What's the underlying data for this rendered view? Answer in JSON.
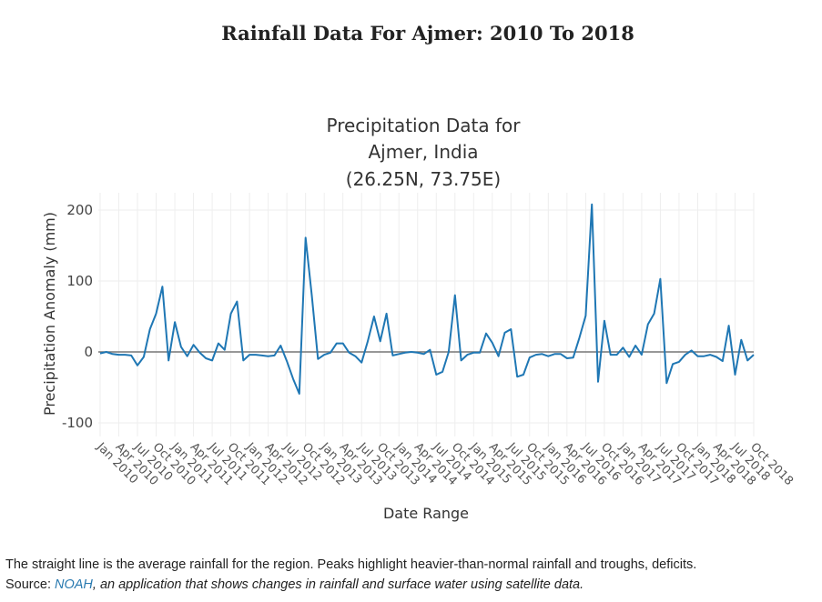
{
  "page": {
    "title": "Rainfall Data For Ajmer: 2010 To 2018",
    "caption_line1": "The straight line is the average rainfall for the region. Peaks highlight heavier-than-normal rainfall and troughs, deficits.",
    "caption_source_label": "Source: ",
    "caption_link": "NOAH",
    "caption_rest": ", an application that shows changes in rainfall and surface water using satellite data."
  },
  "chart_data": {
    "type": "line",
    "title_lines": [
      "Precipitation Data for",
      "Ajmer, India",
      "(26.25N, 73.75E)"
    ],
    "xlabel": "Date Range",
    "ylabel": "Precipitation Anomaly (mm)",
    "ylim": [
      -110,
      220
    ],
    "y_ticks": [
      200,
      100,
      0,
      -100
    ],
    "grid": true,
    "line_color": "#1f77b4",
    "zero_line_color": "#777777",
    "x_tick_labels": [
      "Jan 2010",
      "Apr 2010",
      "Jul 2010",
      "Oct 2010",
      "Jan 2011",
      "Apr 2011",
      "Jul 2011",
      "Oct 2011",
      "Jan 2012",
      "Apr 2012",
      "Jul 2012",
      "Oct 2012",
      "Jan 2013",
      "Apr 2013",
      "Jul 2013",
      "Oct 2013",
      "Jan 2014",
      "Apr 2014",
      "Jul 2014",
      "Oct 2014",
      "Jan 2015",
      "Apr 2015",
      "Jul 2015",
      "Oct 2015",
      "Jan 2016",
      "Apr 2016",
      "Jul 2016",
      "Oct 2016",
      "Jan 2017",
      "Apr 2017",
      "Jul 2017",
      "Oct 2017",
      "Jan 2018",
      "Apr 2018",
      "Jul 2018",
      "Oct 2018"
    ],
    "x": [
      "2010-01",
      "2010-02",
      "2010-03",
      "2010-04",
      "2010-05",
      "2010-06",
      "2010-07",
      "2010-08",
      "2010-09",
      "2010-10",
      "2010-11",
      "2010-12",
      "2011-01",
      "2011-02",
      "2011-03",
      "2011-04",
      "2011-05",
      "2011-06",
      "2011-07",
      "2011-08",
      "2011-09",
      "2011-10",
      "2011-11",
      "2011-12",
      "2012-01",
      "2012-02",
      "2012-03",
      "2012-04",
      "2012-05",
      "2012-06",
      "2012-07",
      "2012-08",
      "2012-09",
      "2012-10",
      "2012-11",
      "2012-12",
      "2013-01",
      "2013-02",
      "2013-03",
      "2013-04",
      "2013-05",
      "2013-06",
      "2013-07",
      "2013-08",
      "2013-09",
      "2013-10",
      "2013-11",
      "2013-12",
      "2014-01",
      "2014-02",
      "2014-03",
      "2014-04",
      "2014-05",
      "2014-06",
      "2014-07",
      "2014-08",
      "2014-09",
      "2014-10",
      "2014-11",
      "2014-12",
      "2015-01",
      "2015-02",
      "2015-03",
      "2015-04",
      "2015-05",
      "2015-06",
      "2015-07",
      "2015-08",
      "2015-09",
      "2015-10",
      "2015-11",
      "2015-12",
      "2016-01",
      "2016-02",
      "2016-03",
      "2016-04",
      "2016-05",
      "2016-06",
      "2016-07",
      "2016-08",
      "2016-09",
      "2016-10",
      "2016-11",
      "2016-12",
      "2017-01",
      "2017-02",
      "2017-03",
      "2017-04",
      "2017-05",
      "2017-06",
      "2017-07",
      "2017-08",
      "2017-09",
      "2017-10",
      "2017-11",
      "2017-12",
      "2018-01",
      "2018-02",
      "2018-03",
      "2018-04",
      "2018-05",
      "2018-06",
      "2018-07",
      "2018-08",
      "2018-09",
      "2018-10"
    ],
    "y": [
      -2,
      0,
      -3,
      -4,
      -4,
      -5,
      -19,
      -7,
      32,
      54,
      92,
      -12,
      42,
      7,
      -6,
      10,
      -1,
      -9,
      -12,
      12,
      3,
      54,
      71,
      -12,
      -4,
      -4,
      -5,
      -6,
      -5,
      9,
      -13,
      -38,
      -59,
      161,
      80,
      -10,
      -4,
      -1,
      12,
      12,
      -1,
      -6,
      -15,
      15,
      50,
      15,
      54,
      -5,
      -3,
      -1,
      0,
      -1,
      -3,
      3,
      -32,
      -28,
      0,
      80,
      -12,
      -4,
      -1,
      -1,
      26,
      13,
      -6,
      27,
      32,
      -35,
      -32,
      -8,
      -4,
      -3,
      -6,
      -3,
      -3,
      -9,
      -8,
      20,
      51,
      208,
      -42,
      44,
      -4,
      -4,
      6,
      -7,
      9,
      -4,
      39,
      54,
      103,
      -44,
      -17,
      -14,
      -4,
      2,
      -6,
      -6,
      -4,
      -7,
      -13,
      37,
      -32,
      17,
      -12,
      -4
    ]
  }
}
